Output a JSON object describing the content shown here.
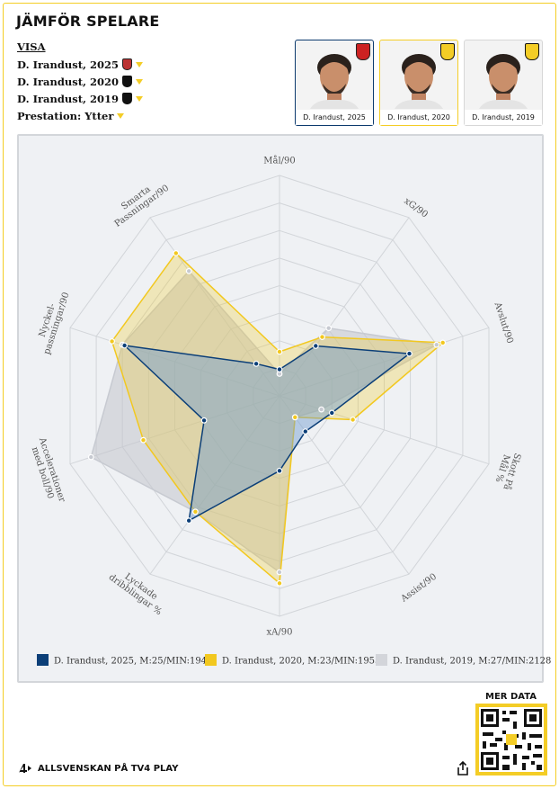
{
  "header": {
    "title": "JÄMFÖR SPELARE"
  },
  "filters": {
    "visa_label": "VISA",
    "players": [
      {
        "label": "D. Irandust, 2025"
      },
      {
        "label": "D. Irandust, 2020"
      },
      {
        "label": "D. Irandust, 2019"
      }
    ],
    "performance_label": "Prestation: Ytter"
  },
  "cards": [
    {
      "caption": "D. Irandust, 2025"
    },
    {
      "caption": "D. Irandust, 2020"
    },
    {
      "caption": "D. Irandust, 2019"
    }
  ],
  "chart_data": {
    "type": "radar",
    "axes": [
      "Mål/90",
      "xG/90",
      "Avslut/90",
      "Skott På Mål %",
      "Assist/90",
      "xA/90",
      "Lyckade dribblingar %",
      "Accelerationer med boll/90",
      "Nyckel-passningar/90",
      "Smarta Passningar/90"
    ],
    "rlim": [
      0,
      1
    ],
    "series": [
      {
        "name": "D. Irandust, 2025, M:25/MIN:1940",
        "color": "#0c3f78",
        "fill": "#6f9bcf",
        "fill_opacity": 0.45,
        "draw_order": 3,
        "markers": true,
        "values": [
          0.12,
          0.28,
          0.62,
          0.25,
          0.2,
          0.34,
          0.7,
          0.36,
          0.74,
          0.18
        ]
      },
      {
        "name": "D. Irandust, 2020, M:23/MIN:1955",
        "color": "#f2c81f",
        "fill": "#f2c81f",
        "fill_opacity": 0.28,
        "draw_order": 2,
        "markers": true,
        "values": [
          0.2,
          0.33,
          0.78,
          0.35,
          0.12,
          0.85,
          0.65,
          0.65,
          0.8,
          0.8
        ]
      },
      {
        "name": "D. Irandust, 2019, M:27/MIN:2128",
        "color": "#c7cad1",
        "fill": "#c2c5cc",
        "fill_opacity": 0.55,
        "draw_order": 1,
        "markers": true,
        "values": [
          0.1,
          0.38,
          0.75,
          0.2,
          0.12,
          0.8,
          0.65,
          0.9,
          0.75,
          0.7
        ]
      }
    ]
  },
  "footer": {
    "label": "ALLSVENSKAN PÅ TV4 PLAY",
    "mer_data": "MER DATA"
  }
}
